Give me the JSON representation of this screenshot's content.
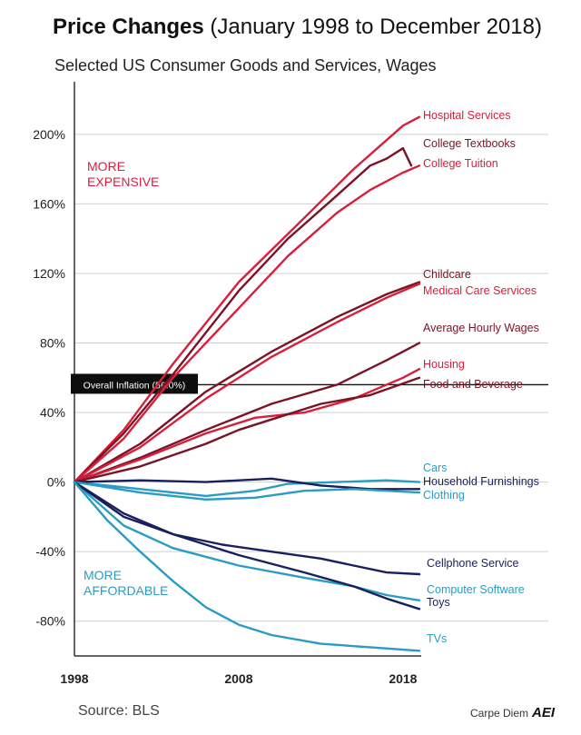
{
  "header": {
    "title_bold": "Price Changes",
    "title_rest": " (January 1998 to December 2018)",
    "subtitle": "Selected US Consumer Goods and Services, Wages"
  },
  "footer": {
    "source": "Source: BLS",
    "brand": "Carpe Diem",
    "logo_text": "AEI"
  },
  "colors": {
    "red": "#d91e3c",
    "darkred": "#7a1424",
    "blue": "#2a9cc4",
    "navy": "#1a1f5e",
    "grid": "#cfcfcf",
    "axis": "#333333"
  },
  "chart_data": {
    "type": "line",
    "x_ticks": [
      "1998",
      "2008",
      "2018"
    ],
    "y_ticks": [
      "200%",
      "160%",
      "120%",
      "80%",
      "40%",
      "0%",
      "-40%",
      "-80%"
    ],
    "xlim": [
      1998,
      2019
    ],
    "ylim": [
      -100,
      225
    ],
    "annotations": {
      "more_expensive": [
        "MORE",
        "EXPENSIVE"
      ],
      "more_affordable": [
        "MORE",
        "AFFORDABLE"
      ]
    },
    "inflation": {
      "label": "Overall Inflation (56.0%)",
      "value": 56
    },
    "series": [
      {
        "name": "Hospital Services",
        "color": "#d91e3c",
        "points": [
          [
            1998,
            0
          ],
          [
            2001,
            30
          ],
          [
            2004,
            68
          ],
          [
            2008,
            115
          ],
          [
            2012,
            152
          ],
          [
            2015,
            180
          ],
          [
            2018,
            205
          ],
          [
            2019,
            210
          ]
        ]
      },
      {
        "name": "College Textbooks",
        "color": "#7a1424",
        "points": [
          [
            1998,
            0
          ],
          [
            2001,
            28
          ],
          [
            2004,
            62
          ],
          [
            2008,
            110
          ],
          [
            2011,
            140
          ],
          [
            2014,
            165
          ],
          [
            2016,
            182
          ],
          [
            2017,
            186
          ],
          [
            2018,
            192
          ],
          [
            2018.5,
            182
          ]
        ]
      },
      {
        "name": "College Tuition",
        "color": "#d91e3c",
        "points": [
          [
            1998,
            0
          ],
          [
            2001,
            25
          ],
          [
            2004,
            60
          ],
          [
            2008,
            100
          ],
          [
            2011,
            130
          ],
          [
            2014,
            155
          ],
          [
            2016,
            168
          ],
          [
            2018,
            178
          ],
          [
            2019,
            182
          ]
        ]
      },
      {
        "name": "Childcare",
        "color": "#7a1424",
        "points": [
          [
            1998,
            0
          ],
          [
            2002,
            22
          ],
          [
            2006,
            52
          ],
          [
            2010,
            75
          ],
          [
            2014,
            95
          ],
          [
            2017,
            108
          ],
          [
            2019,
            115
          ]
        ]
      },
      {
        "name": "Medical Care Services",
        "color": "#d91e3c",
        "points": [
          [
            1998,
            0
          ],
          [
            2002,
            20
          ],
          [
            2006,
            48
          ],
          [
            2010,
            72
          ],
          [
            2014,
            92
          ],
          [
            2017,
            106
          ],
          [
            2019,
            114
          ]
        ]
      },
      {
        "name": "Average Hourly Wages",
        "color": "#7a1424",
        "points": [
          [
            1998,
            0
          ],
          [
            2002,
            14
          ],
          [
            2006,
            30
          ],
          [
            2010,
            45
          ],
          [
            2014,
            56
          ],
          [
            2017,
            70
          ],
          [
            2019,
            80
          ]
        ]
      },
      {
        "name": "Housing",
        "color": "#d91e3c",
        "points": [
          [
            1998,
            0
          ],
          [
            2002,
            13
          ],
          [
            2006,
            28
          ],
          [
            2009,
            37
          ],
          [
            2012,
            40
          ],
          [
            2015,
            48
          ],
          [
            2018,
            60
          ],
          [
            2019,
            65
          ]
        ]
      },
      {
        "name": "Food and Beverage",
        "color": "#7a1424",
        "points": [
          [
            1998,
            0
          ],
          [
            2002,
            9
          ],
          [
            2006,
            22
          ],
          [
            2008,
            30
          ],
          [
            2010,
            36
          ],
          [
            2013,
            45
          ],
          [
            2016,
            50
          ],
          [
            2019,
            60
          ]
        ]
      },
      {
        "name": "Cars",
        "color": "#2a9cc4",
        "points": [
          [
            1998,
            0
          ],
          [
            2002,
            -4
          ],
          [
            2006,
            -8
          ],
          [
            2009,
            -5
          ],
          [
            2011,
            -1
          ],
          [
            2014,
            0
          ],
          [
            2017,
            1
          ],
          [
            2019,
            0
          ]
        ]
      },
      {
        "name": "Household Furnishings",
        "color": "#1a1f5e",
        "points": [
          [
            1998,
            0
          ],
          [
            2002,
            1
          ],
          [
            2006,
            0
          ],
          [
            2010,
            2
          ],
          [
            2013,
            -2
          ],
          [
            2016,
            -4
          ],
          [
            2019,
            -4
          ]
        ]
      },
      {
        "name": "Clothing",
        "color": "#2a9cc4",
        "points": [
          [
            1998,
            0
          ],
          [
            2002,
            -6
          ],
          [
            2006,
            -10
          ],
          [
            2009,
            -9
          ],
          [
            2012,
            -5
          ],
          [
            2015,
            -4
          ],
          [
            2019,
            -6
          ]
        ]
      },
      {
        "name": "Cellphone Service",
        "color": "#1a1f5e",
        "points": [
          [
            1998,
            0
          ],
          [
            2001,
            -18
          ],
          [
            2004,
            -30
          ],
          [
            2007,
            -36
          ],
          [
            2010,
            -40
          ],
          [
            2013,
            -44
          ],
          [
            2015,
            -48
          ],
          [
            2017,
            -52
          ],
          [
            2019,
            -53
          ]
        ]
      },
      {
        "name": "Computer Software",
        "color": "#2a9cc4",
        "points": [
          [
            1998,
            0
          ],
          [
            2001,
            -25
          ],
          [
            2004,
            -38
          ],
          [
            2008,
            -48
          ],
          [
            2012,
            -55
          ],
          [
            2015,
            -60
          ],
          [
            2017,
            -65
          ],
          [
            2019,
            -68
          ]
        ]
      },
      {
        "name": "Toys",
        "color": "#1a1f5e",
        "points": [
          [
            1998,
            0
          ],
          [
            2001,
            -20
          ],
          [
            2004,
            -30
          ],
          [
            2008,
            -42
          ],
          [
            2012,
            -52
          ],
          [
            2015,
            -60
          ],
          [
            2017,
            -67
          ],
          [
            2019,
            -73
          ]
        ]
      },
      {
        "name": "TVs",
        "color": "#2a9cc4",
        "points": [
          [
            1998,
            0
          ],
          [
            2000,
            -22
          ],
          [
            2002,
            -40
          ],
          [
            2004,
            -57
          ],
          [
            2006,
            -72
          ],
          [
            2008,
            -82
          ],
          [
            2010,
            -88
          ],
          [
            2013,
            -93
          ],
          [
            2016,
            -95
          ],
          [
            2019,
            -97
          ]
        ]
      }
    ]
  }
}
